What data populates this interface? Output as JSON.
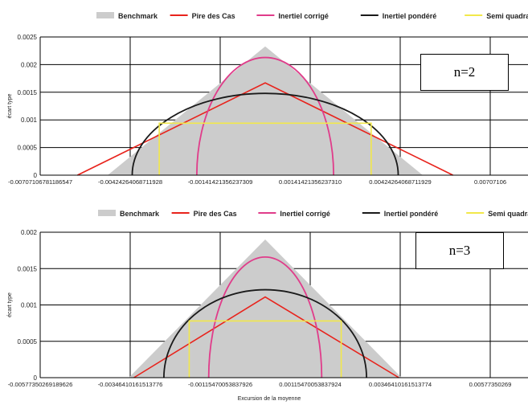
{
  "colors": {
    "benchmark": "#cccccc",
    "pire_des_cas": "#e8231c",
    "inertiel_corrige": "#e03c8a",
    "inertiel_pondere": "#1a1a1a",
    "semi_quadratique": "#f2e84a",
    "grid": "#000000"
  },
  "legend": [
    {
      "key": "benchmark",
      "label": "Benchmark",
      "kind": "swatch"
    },
    {
      "key": "pire_des_cas",
      "label": "Pire des Cas",
      "kind": "line"
    },
    {
      "key": "inertiel_corrige",
      "label": "Inertiel corrigé",
      "kind": "line"
    },
    {
      "key": "inertiel_pondere",
      "label": "Inertiel pondéré",
      "kind": "line"
    },
    {
      "key": "semi_quadratique",
      "label": "Semi quadratique",
      "kind": "line"
    }
  ],
  "chart_data": [
    {
      "type": "area",
      "annotation": "n=2",
      "xlabel": "",
      "ylabel": "écart type",
      "xlim": [
        -0.00707106781186547,
        0.00707106781186547
      ],
      "ylim": [
        0,
        0.0025
      ],
      "x_ticks": [
        -0.00707106781186547,
        -0.00424264068711928,
        -0.00141421356237309,
        0.0014142135623731,
        0.00424264068711929,
        0.00707106781186547
      ],
      "x_tick_labels": [
        "-0.00707106781186547",
        "-0.00424264068711928",
        "-0.00141421356237309",
        "0.00141421356237310",
        "0.00424264068711929",
        "0.00707106"
      ],
      "y_ticks": [
        0,
        0.0005,
        0.001,
        0.0015,
        0.002,
        0.0025
      ],
      "y_tick_labels": [
        "0",
        "0.0005",
        "0.001",
        "0.0015",
        "0.002",
        "0.0025"
      ],
      "legend_position": "top",
      "grid": true,
      "series": [
        {
          "name": "Benchmark",
          "key": "benchmark",
          "kind": "area",
          "x": [
            -0.00495,
            0,
            0.00495
          ],
          "y": [
            0,
            0.00233,
            0
          ]
        },
        {
          "name": "Pire des Cas",
          "key": "pire_des_cas",
          "kind": "line",
          "x": [
            -0.0059,
            0,
            0.0059
          ],
          "y": [
            0,
            0.00167,
            0
          ]
        },
        {
          "name": "Inertiel corrigé",
          "key": "inertiel_corrige",
          "kind": "semiellipse",
          "center": 0,
          "half_width": 0.00215,
          "peak": 0.00213
        },
        {
          "name": "Inertiel pondéré",
          "key": "inertiel_pondere",
          "kind": "semiellipse",
          "center": 0,
          "half_width": 0.00418,
          "peak": 0.00148
        },
        {
          "name": "Semi quadratique",
          "key": "semi_quadratique",
          "kind": "rect",
          "x0": -0.00333,
          "x1": 0.00333,
          "height": 0.00094
        }
      ]
    },
    {
      "type": "area",
      "annotation": "n=3",
      "xlabel": "Excursion de la moyenne",
      "ylabel": "écart type",
      "xlim": [
        -0.00577350269189626,
        0.00577350269189626
      ],
      "ylim": [
        0,
        0.002
      ],
      "x_ticks": [
        -0.00577350269189626,
        -0.00346410161513776,
        -0.00115470053837926,
        0.00115470053837924,
        0.00346410161513774,
        0.00577350269189626
      ],
      "x_tick_labels": [
        "-0.00577350269189626",
        "-0.00346410161513776",
        "-0.00115470053837926",
        "0.00115470053837924",
        "0.00346410161513774",
        "0.00577350269"
      ],
      "y_ticks": [
        0,
        0.0005,
        0.001,
        0.0015,
        0.002
      ],
      "y_tick_labels": [
        "0",
        "0.0005",
        "0.001",
        "0.0015",
        "0.002"
      ],
      "legend_position": "top",
      "grid": true,
      "series": [
        {
          "name": "Benchmark",
          "key": "benchmark",
          "kind": "area",
          "x": [
            -0.0035,
            0,
            0.0035
          ],
          "y": [
            0,
            0.0019,
            0
          ]
        },
        {
          "name": "Pire des Cas",
          "key": "pire_des_cas",
          "kind": "line",
          "x": [
            -0.00337,
            0,
            0.00343
          ],
          "y": [
            0,
            0.00111,
            0
          ]
        },
        {
          "name": "Inertiel corrigé",
          "key": "inertiel_corrige",
          "kind": "semiellipse",
          "center": 0,
          "half_width": 0.00145,
          "peak": 0.00166
        },
        {
          "name": "Inertiel pondéré",
          "key": "inertiel_pondere",
          "kind": "semiellipse",
          "center": 0,
          "half_width": 0.0026,
          "peak": 0.00121
        },
        {
          "name": "Semi quadratique",
          "key": "semi_quadratique",
          "kind": "rect",
          "x0": -0.00195,
          "x1": 0.00195,
          "height": 0.00078
        }
      ]
    }
  ]
}
